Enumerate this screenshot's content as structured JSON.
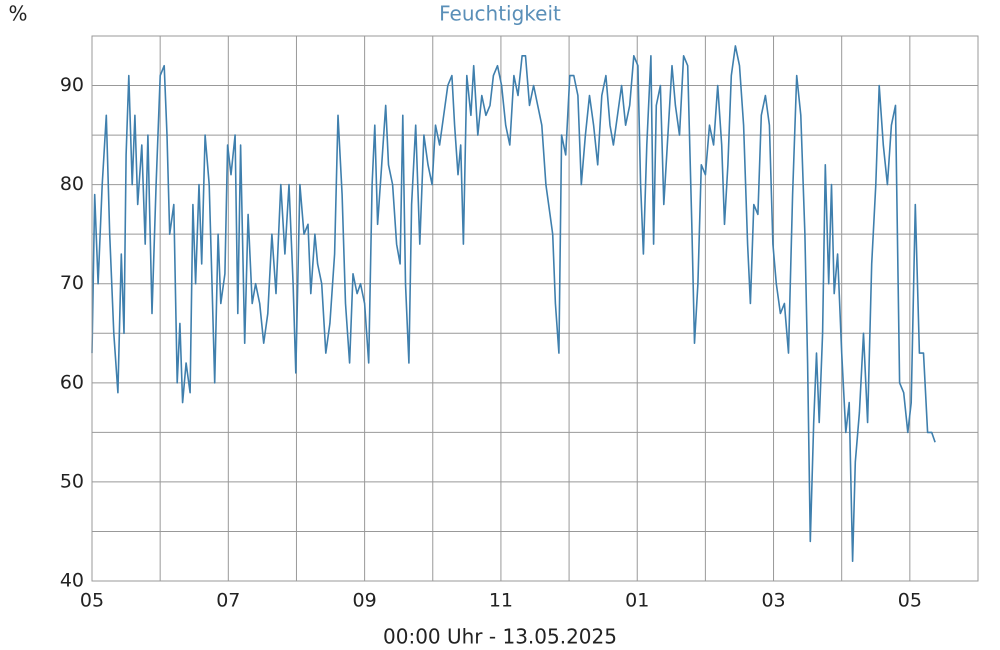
{
  "chart_data": {
    "type": "line",
    "title": "Feuchtigkeit",
    "ylabel": "%",
    "xlabel": "00:00 Uhr - 13.05.2025",
    "color": "#3f7fad",
    "xlim": [
      0,
      13
    ],
    "xticks": [
      {
        "value": 0,
        "label": "05"
      },
      {
        "value": 2,
        "label": "07"
      },
      {
        "value": 4,
        "label": "09"
      },
      {
        "value": 6,
        "label": "11"
      },
      {
        "value": 8,
        "label": "01"
      },
      {
        "value": 10,
        "label": "03"
      },
      {
        "value": 12,
        "label": "05"
      }
    ],
    "xminor": [
      1,
      3,
      5,
      7,
      9,
      11
    ],
    "ylim": [
      40,
      95
    ],
    "yticks": [
      40,
      50,
      60,
      70,
      80,
      90
    ],
    "yminor": [
      45,
      55,
      65,
      75,
      85
    ],
    "grid": true,
    "x": [
      0,
      0.04,
      0.09,
      0.15,
      0.21,
      0.26,
      0.32,
      0.38,
      0.43,
      0.47,
      0.5,
      0.54,
      0.59,
      0.63,
      0.67,
      0.73,
      0.78,
      0.82,
      0.88,
      0.94,
      1.0,
      1.06,
      1.1,
      1.14,
      1.2,
      1.25,
      1.29,
      1.33,
      1.38,
      1.44,
      1.48,
      1.52,
      1.57,
      1.61,
      1.66,
      1.72,
      1.76,
      1.8,
      1.85,
      1.89,
      1.95,
      1.99,
      2.04,
      2.1,
      2.14,
      2.18,
      2.24,
      2.29,
      2.35,
      2.4,
      2.46,
      2.52,
      2.58,
      2.64,
      2.7,
      2.77,
      2.83,
      2.89,
      2.95,
      2.99,
      3.05,
      3.11,
      3.17,
      3.21,
      3.27,
      3.31,
      3.37,
      3.43,
      3.49,
      3.56,
      3.61,
      3.67,
      3.72,
      3.78,
      3.83,
      3.89,
      3.94,
      4.0,
      4.06,
      4.11,
      4.15,
      4.19,
      4.25,
      4.31,
      4.35,
      4.41,
      4.47,
      4.52,
      4.56,
      4.6,
      4.65,
      4.69,
      4.75,
      4.81,
      4.87,
      4.93,
      4.99,
      5.04,
      5.1,
      5.16,
      5.22,
      5.28,
      5.32,
      5.37,
      5.41,
      5.45,
      5.5,
      5.56,
      5.6,
      5.66,
      5.72,
      5.78,
      5.84,
      5.89,
      5.95,
      6.01,
      6.07,
      6.13,
      6.19,
      6.25,
      6.31,
      6.36,
      6.42,
      6.48,
      6.54,
      6.6,
      6.66,
      6.72,
      6.76,
      6.8,
      6.85,
      6.89,
      6.95,
      7.01,
      7.07,
      7.13,
      7.18,
      7.24,
      7.3,
      7.36,
      7.42,
      7.48,
      7.54,
      7.6,
      7.65,
      7.71,
      7.77,
      7.83,
      7.89,
      7.95,
      8.01,
      8.05,
      8.09,
      8.14,
      8.2,
      8.24,
      8.28,
      8.34,
      8.39,
      8.45,
      8.51,
      8.56,
      8.62,
      8.68,
      8.74,
      8.8,
      8.84,
      8.89,
      8.94,
      9.0,
      9.06,
      9.12,
      9.18,
      9.24,
      9.28,
      9.33,
      9.38,
      9.44,
      9.5,
      9.56,
      9.62,
      9.66,
      9.71,
      9.77,
      9.82,
      9.88,
      9.94,
      9.99,
      10.04,
      10.1,
      10.16,
      10.22,
      10.28,
      10.34,
      10.4,
      10.46,
      10.5,
      10.54,
      10.59,
      10.63,
      10.67,
      10.72,
      10.76,
      10.81,
      10.85,
      10.89,
      10.94,
      11.0,
      11.06,
      11.11,
      11.16,
      11.2,
      11.26,
      11.32,
      11.38,
      11.44,
      11.5,
      11.55,
      11.61,
      11.67,
      11.73,
      11.79,
      11.85,
      11.91,
      11.97,
      12.02,
      12.08,
      12.14,
      12.2,
      12.26,
      12.32,
      12.37
    ],
    "values": [
      63,
      79,
      70,
      80,
      87,
      75,
      65,
      59,
      73,
      65,
      83,
      91,
      80,
      87,
      78,
      84,
      74,
      85,
      67,
      80,
      91,
      92,
      85,
      75,
      78,
      60,
      66,
      58,
      62,
      59,
      78,
      70,
      80,
      72,
      85,
      80,
      70,
      60,
      75,
      68,
      71,
      84,
      81,
      85,
      67,
      84,
      64,
      77,
      68,
      70,
      68,
      64,
      67,
      75,
      69,
      80,
      73,
      80,
      70,
      61,
      80,
      75,
      76,
      69,
      75,
      72,
      70,
      63,
      66,
      73,
      87,
      79,
      68,
      62,
      71,
      69,
      70,
      68,
      62,
      80,
      86,
      76,
      82,
      88,
      82,
      80,
      74,
      72,
      87,
      70,
      62,
      78,
      86,
      74,
      85,
      82,
      80,
      86,
      84,
      87,
      90,
      91,
      86,
      81,
      84,
      74,
      91,
      87,
      92,
      85,
      89,
      87,
      88,
      91,
      92,
      90,
      86,
      84,
      91,
      89,
      93,
      93,
      88,
      90,
      88,
      86,
      80,
      77,
      75,
      68,
      63,
      85,
      83,
      91,
      91,
      89,
      80,
      85,
      89,
      86,
      82,
      89,
      91,
      86,
      84,
      87,
      90,
      86,
      88,
      93,
      92,
      80,
      73,
      84,
      93,
      74,
      88,
      90,
      78,
      85,
      92,
      88,
      85,
      93,
      92,
      76,
      64,
      70,
      82,
      81,
      86,
      84,
      90,
      84,
      76,
      82,
      91,
      94,
      92,
      86,
      74,
      68,
      78,
      77,
      87,
      89,
      86,
      74,
      70,
      67,
      68,
      63,
      79,
      91,
      87,
      75,
      62,
      44,
      56,
      63,
      56,
      65,
      82,
      70,
      80,
      69,
      73,
      63,
      55,
      58,
      42,
      52,
      57,
      65,
      56,
      72,
      80,
      90,
      84,
      80,
      86,
      88,
      60,
      59,
      55,
      58,
      78,
      63,
      63,
      55,
      55,
      54
    ]
  }
}
